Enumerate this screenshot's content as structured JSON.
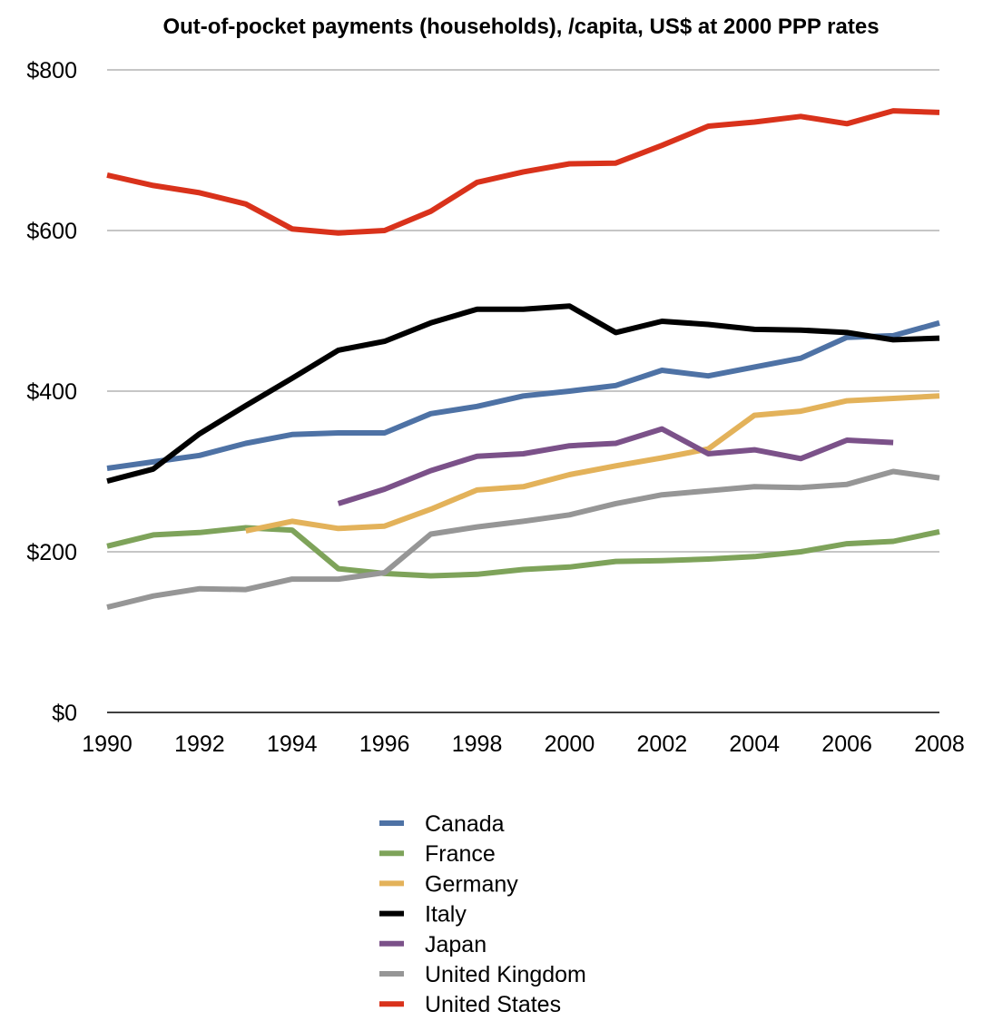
{
  "chart_data": {
    "type": "line",
    "title": "Out-of-pocket payments (households), /capita, US$ at 2000 PPP rates",
    "xlabel": "",
    "ylabel": "",
    "x": [
      1990,
      1991,
      1992,
      1993,
      1994,
      1995,
      1996,
      1997,
      1998,
      1999,
      2000,
      2001,
      2002,
      2003,
      2004,
      2005,
      2006,
      2007,
      2008
    ],
    "xticks": [
      1990,
      1992,
      1994,
      1996,
      1998,
      2000,
      2002,
      2004,
      2006,
      2008
    ],
    "xlim": [
      1990,
      2008
    ],
    "yticks": [
      0,
      200,
      400,
      600,
      800
    ],
    "ytick_labels": [
      "$0",
      "$200",
      "$400",
      "$600",
      "$800"
    ],
    "ylim": [
      0,
      800
    ],
    "grid": true,
    "legend_position": "bottom",
    "series": [
      {
        "name": "Canada",
        "color": "#4e72a5",
        "values": [
          304,
          312,
          320,
          335,
          346,
          348,
          348,
          372,
          381,
          394,
          400,
          407,
          426,
          419,
          430,
          441,
          467,
          469,
          485
        ]
      },
      {
        "name": "France",
        "color": "#7ea35a",
        "values": [
          207,
          221,
          224,
          230,
          227,
          179,
          173,
          170,
          172,
          178,
          181,
          188,
          189,
          191,
          194,
          200,
          210,
          213,
          225
        ]
      },
      {
        "name": "Germany",
        "color": "#e3b25a",
        "values": [
          null,
          null,
          null,
          226,
          238,
          229,
          232,
          253,
          277,
          281,
          296,
          307,
          317,
          328,
          370,
          375,
          388,
          391,
          394
        ]
      },
      {
        "name": "Italy",
        "color": "#000000",
        "values": [
          288,
          303,
          347,
          382,
          416,
          451,
          462,
          485,
          502,
          502,
          506,
          473,
          487,
          483,
          477,
          476,
          473,
          464,
          466
        ]
      },
      {
        "name": "Japan",
        "color": "#7b5189",
        "values": [
          null,
          null,
          null,
          null,
          null,
          260,
          278,
          301,
          319,
          322,
          332,
          335,
          353,
          322,
          327,
          316,
          339,
          336,
          null
        ]
      },
      {
        "name": "United Kingdom",
        "color": "#969696",
        "values": [
          131,
          145,
          154,
          153,
          166,
          166,
          174,
          222,
          231,
          238,
          246,
          260,
          271,
          276,
          281,
          280,
          284,
          300,
          292
        ]
      },
      {
        "name": "United States",
        "color": "#d9321b",
        "values": [
          669,
          656,
          647,
          633,
          602,
          597,
          600,
          624,
          660,
          673,
          683,
          684,
          706,
          730,
          735,
          742,
          733,
          749,
          747
        ]
      }
    ]
  }
}
